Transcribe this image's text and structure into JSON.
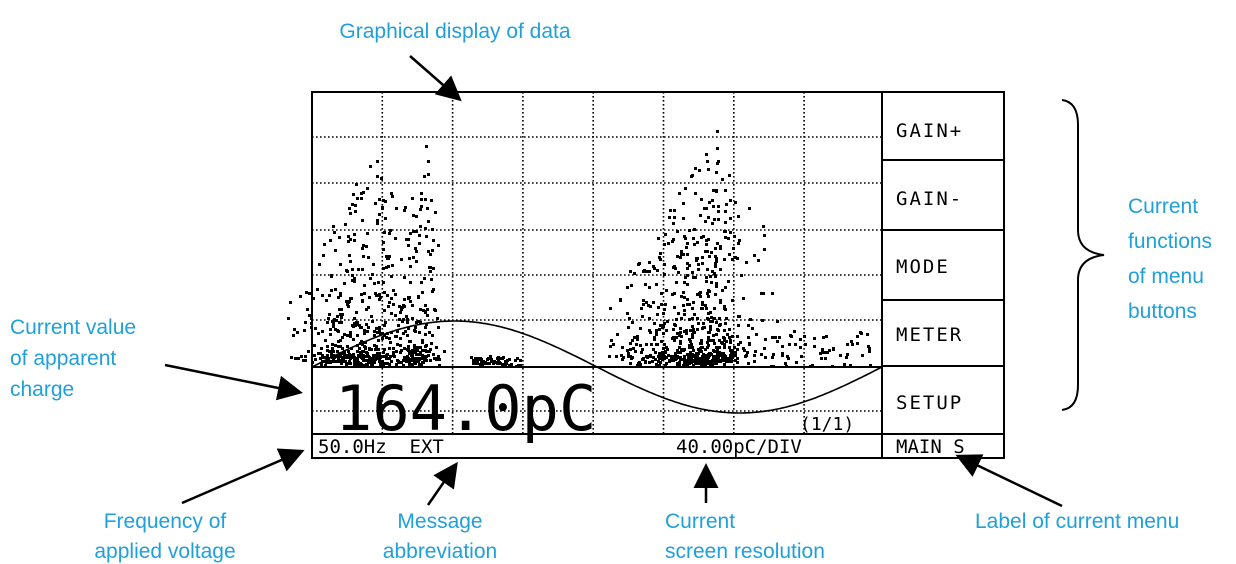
{
  "annotations": {
    "display": "Graphical display of data",
    "functions": [
      "Current",
      "functions",
      "of menu",
      "buttons"
    ],
    "charge": [
      "Current value",
      "of apparent",
      "charge"
    ],
    "frequency": [
      "Frequency of",
      "applied voltage"
    ],
    "message": [
      "Message",
      "abbreviation"
    ],
    "resolution": [
      "Current",
      "screen resolution"
    ],
    "menu": "Label of current menu"
  },
  "screen": {
    "reading": "164.0pC",
    "page": "(1/1)",
    "status_left": "50.0Hz  EXT",
    "status_right": "40.00pC/DIV",
    "menu_label": "MAIN S",
    "buttons": [
      "GAIN+",
      "GAIN-",
      "MODE",
      "METER",
      "SETUP"
    ]
  }
}
